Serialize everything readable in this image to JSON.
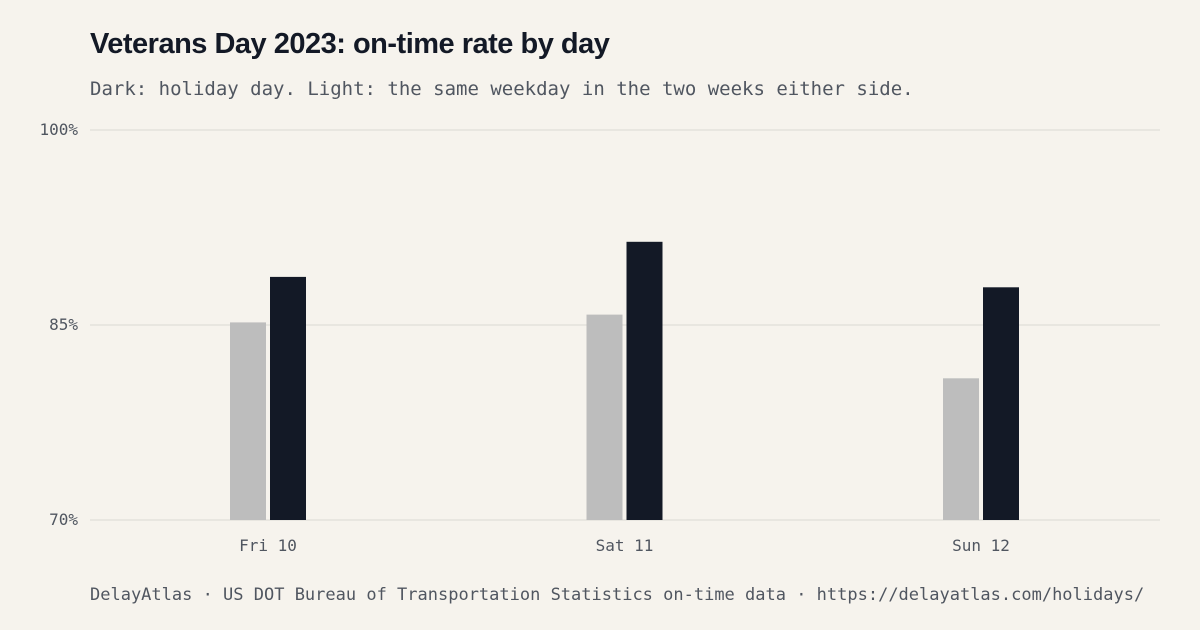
{
  "title": "Veterans Day 2023: on-time rate by day",
  "subtitle": "Dark: holiday day. Light: the same weekday in the two weeks either side.",
  "source": "DelayAtlas · US DOT Bureau of Transportation Statistics on-time data · https://delayatlas.com/holidays/",
  "colors": {
    "background": "#f6f3ed",
    "holiday": "#131926",
    "baseline": "#bdbdbd",
    "grid": "#e4e1db",
    "text": "#505660"
  },
  "chart_data": {
    "type": "bar",
    "categories": [
      "Fri 10",
      "Sat 11",
      "Sun 12"
    ],
    "series": [
      {
        "key": "baseline",
        "values": [
          85.2,
          85.8,
          80.9
        ]
      },
      {
        "key": "holiday",
        "values": [
          88.7,
          91.4,
          87.9
        ]
      }
    ],
    "yticks": [
      70,
      85,
      100
    ],
    "ytick_labels": [
      "70%",
      "85%",
      "100%"
    ],
    "ylim": [
      70,
      100
    ],
    "grid": true
  }
}
